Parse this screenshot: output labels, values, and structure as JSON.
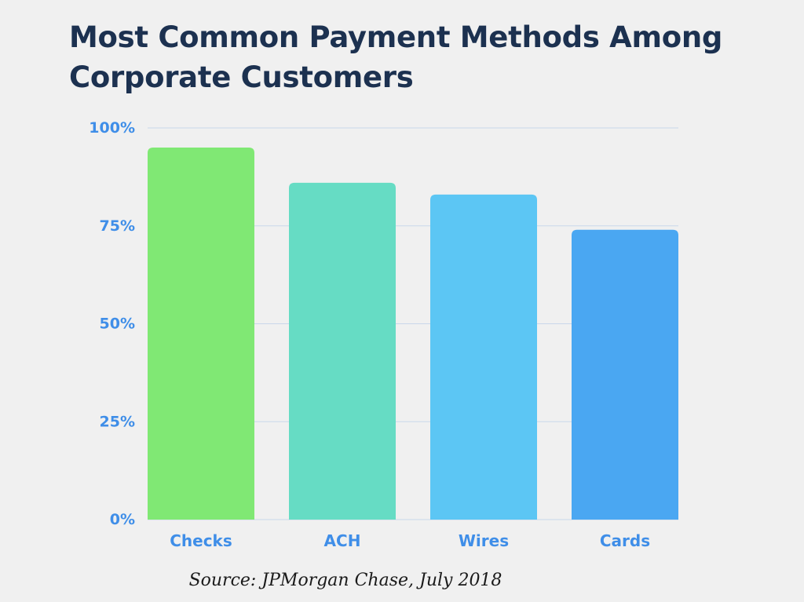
{
  "chart_data": {
    "type": "bar",
    "title": "Most Common Payment Methods Among Corporate Customers",
    "categories": [
      "Checks",
      "ACH",
      "Wires",
      "Cards"
    ],
    "values": [
      95,
      86,
      83,
      74
    ],
    "colors": [
      "#80e874",
      "#66dcc4",
      "#5cc6f4",
      "#4aa7f2"
    ],
    "ylim": [
      0,
      100
    ],
    "yticks": [
      "0%",
      "25%",
      "50%",
      "75%",
      "100%"
    ],
    "grid": true,
    "tick_color": "#3f8ee8",
    "grid_color": "#c9d7ea"
  },
  "source": "Source: JPMorgan Chase, July 2018"
}
